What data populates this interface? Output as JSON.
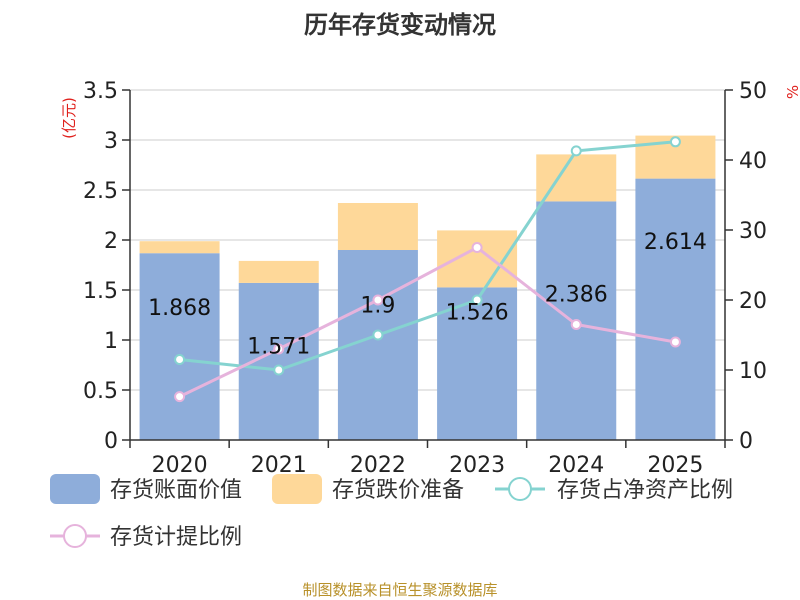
{
  "chart_data": {
    "type": "bar",
    "title": "历年存货变动情况",
    "categories": [
      "2020",
      "2021",
      "2022",
      "2023",
      "2024",
      "2025"
    ],
    "y_left": {
      "unit": "(亿元)",
      "range": [
        0,
        3.5
      ],
      "ticks": [
        "0",
        "0.5",
        "1",
        "1.5",
        "2",
        "2.5",
        "3",
        "3.5"
      ]
    },
    "y_right": {
      "unit": "%",
      "range": [
        0,
        50
      ],
      "ticks": [
        "0",
        "10",
        "20",
        "30",
        "40",
        "50"
      ]
    },
    "series": [
      {
        "name": "存货账面价值",
        "type": "bar",
        "stack": "inventory",
        "axis": "left",
        "color": "#8eadda",
        "values": [
          1.868,
          1.571,
          1.9,
          1.526,
          2.386,
          2.614
        ],
        "labels": [
          "1.868",
          "1.571",
          "1.9",
          "1.526",
          "2.386",
          "2.614"
        ]
      },
      {
        "name": "存货跌价准备",
        "type": "bar",
        "stack": "inventory",
        "axis": "left",
        "color": "#fed899",
        "values": [
          0.12,
          0.22,
          0.47,
          0.57,
          0.47,
          0.43
        ]
      },
      {
        "name": "存货占净资产比例",
        "type": "line",
        "axis": "right",
        "color": "#85d3d0",
        "values": [
          11.5,
          10.0,
          15.0,
          20.0,
          41.3,
          42.6
        ]
      },
      {
        "name": "存货计提比例",
        "type": "line",
        "axis": "right",
        "color": "#e6b3dc",
        "values": [
          6.2,
          13.0,
          20.0,
          27.5,
          16.5,
          14.0
        ]
      }
    ],
    "legend": "bottom",
    "grid": true
  },
  "source_text": "制图数据来自恒生聚源数据库"
}
